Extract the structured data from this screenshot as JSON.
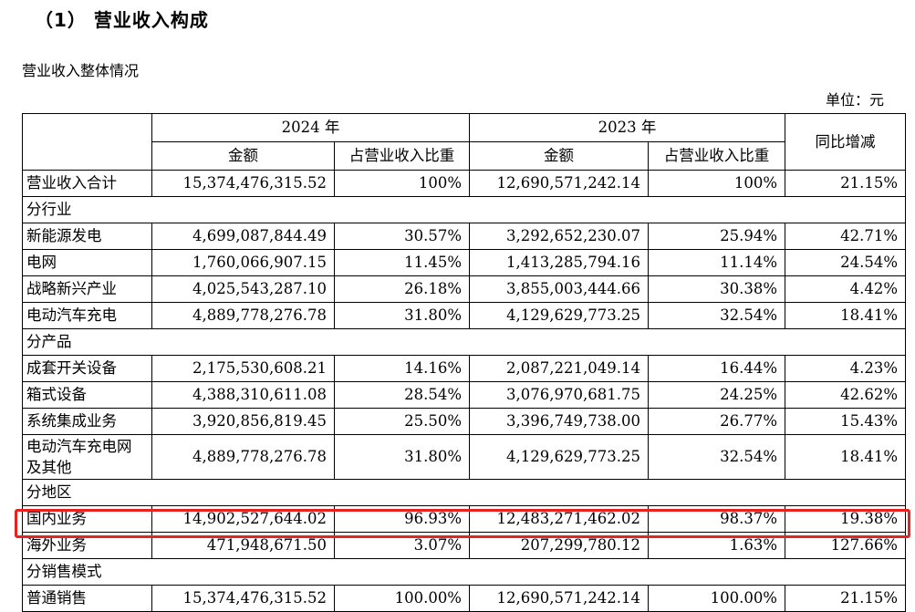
{
  "heading": {
    "title": "（1）  营业收入构成",
    "subtitle": "营业收入整体情况",
    "unit": "单位：元"
  },
  "table": {
    "corner": "",
    "year_2024": "2024 年",
    "year_2023": "2023 年",
    "yoy_header": "同比增减",
    "amount_header": "金额",
    "share_header": "占营业收入比重",
    "total_row": {
      "label": "营业收入合计",
      "a2024": "15,374,476,315.52",
      "s2024": "100%",
      "a2023": "12,690,571,242.14",
      "s2023": "100%",
      "yoy": "21.15%"
    },
    "section_industry": "分行业",
    "industry_rows": [
      {
        "label": "新能源发电",
        "a2024": "4,699,087,844.49",
        "s2024": "30.57%",
        "a2023": "3,292,652,230.07",
        "s2023": "25.94%",
        "yoy": "42.71%"
      },
      {
        "label": "电网",
        "a2024": "1,760,066,907.15",
        "s2024": "11.45%",
        "a2023": "1,413,285,794.16",
        "s2023": "11.14%",
        "yoy": "24.54%"
      },
      {
        "label": "战略新兴产业",
        "a2024": "4,025,543,287.10",
        "s2024": "26.18%",
        "a2023": "3,855,003,444.66",
        "s2023": "30.38%",
        "yoy": "4.42%"
      },
      {
        "label": "电动汽车充电",
        "a2024": "4,889,778,276.78",
        "s2024": "31.80%",
        "a2023": "4,129,629,773.25",
        "s2023": "32.54%",
        "yoy": "18.41%"
      }
    ],
    "section_product": "分产品",
    "product_rows": [
      {
        "label": "成套开关设备",
        "a2024": "2,175,530,608.21",
        "s2024": "14.16%",
        "a2023": "2,087,221,049.14",
        "s2023": "16.44%",
        "yoy": "4.23%"
      },
      {
        "label": "箱式设备",
        "a2024": "4,388,310,611.08",
        "s2024": "28.54%",
        "a2023": "3,076,970,681.75",
        "s2023": "24.25%",
        "yoy": "42.62%"
      },
      {
        "label": "系统集成业务",
        "a2024": "3,920,856,819.45",
        "s2024": "25.50%",
        "a2023": "3,396,749,738.00",
        "s2023": "26.77%",
        "yoy": "15.43%"
      },
      {
        "label": "电动汽车充电网及其他",
        "a2024": "4,889,778,276.78",
        "s2024": "31.80%",
        "a2023": "4,129,629,773.25",
        "s2023": "32.54%",
        "yoy": "18.41%"
      }
    ],
    "section_region": "分地区",
    "region_rows": [
      {
        "label": "国内业务",
        "a2024": "14,902,527,644.02",
        "s2024": "96.93%",
        "a2023": "12,483,271,462.02",
        "s2023": "98.37%",
        "yoy": "19.38%"
      },
      {
        "label": "海外业务",
        "a2024": "471,948,671.50",
        "s2024": "3.07%",
        "a2023": "207,299,780.12",
        "s2023": "1.63%",
        "yoy": "127.66%"
      }
    ],
    "section_sales": "分销售模式",
    "sales_rows": [
      {
        "label": "普通销售",
        "a2024": "15,374,476,315.52",
        "s2024": "100.00%",
        "a2023": "12,690,571,242.14",
        "s2023": "100.00%",
        "yoy": "21.15%"
      }
    ]
  },
  "colors": {
    "highlight_border": "#e8231f"
  }
}
